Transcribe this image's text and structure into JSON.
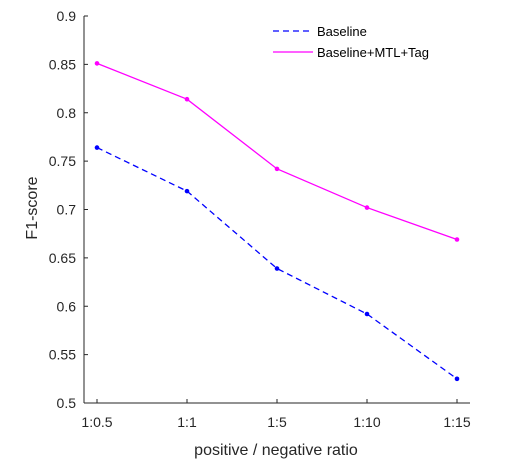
{
  "chart_data": {
    "type": "line",
    "title": "",
    "xlabel": "positive / negative ratio",
    "ylabel": "F1-score",
    "categories": [
      "1:0.5",
      "1:1",
      "1:5",
      "1:10",
      "1:15"
    ],
    "ylim": [
      0.5,
      0.9
    ],
    "yticks": [
      0.5,
      0.55,
      0.6,
      0.65,
      0.7,
      0.75,
      0.8,
      0.85,
      0.9
    ],
    "ytick_labels": [
      "0.5",
      "0.55",
      "0.6",
      "0.65",
      "0.7",
      "0.75",
      "0.8",
      "0.85",
      "0.9"
    ],
    "grid": false,
    "legend_position": "top-right",
    "series": [
      {
        "name": "Baseline",
        "color": "#0000ff",
        "line_style": "dashed",
        "values": [
          0.764,
          0.719,
          0.639,
          0.592,
          0.525
        ]
      },
      {
        "name": "Baseline+MTL+Tag",
        "color": "#ff00ff",
        "line_style": "solid",
        "values": [
          0.851,
          0.814,
          0.742,
          0.702,
          0.669
        ]
      }
    ]
  }
}
